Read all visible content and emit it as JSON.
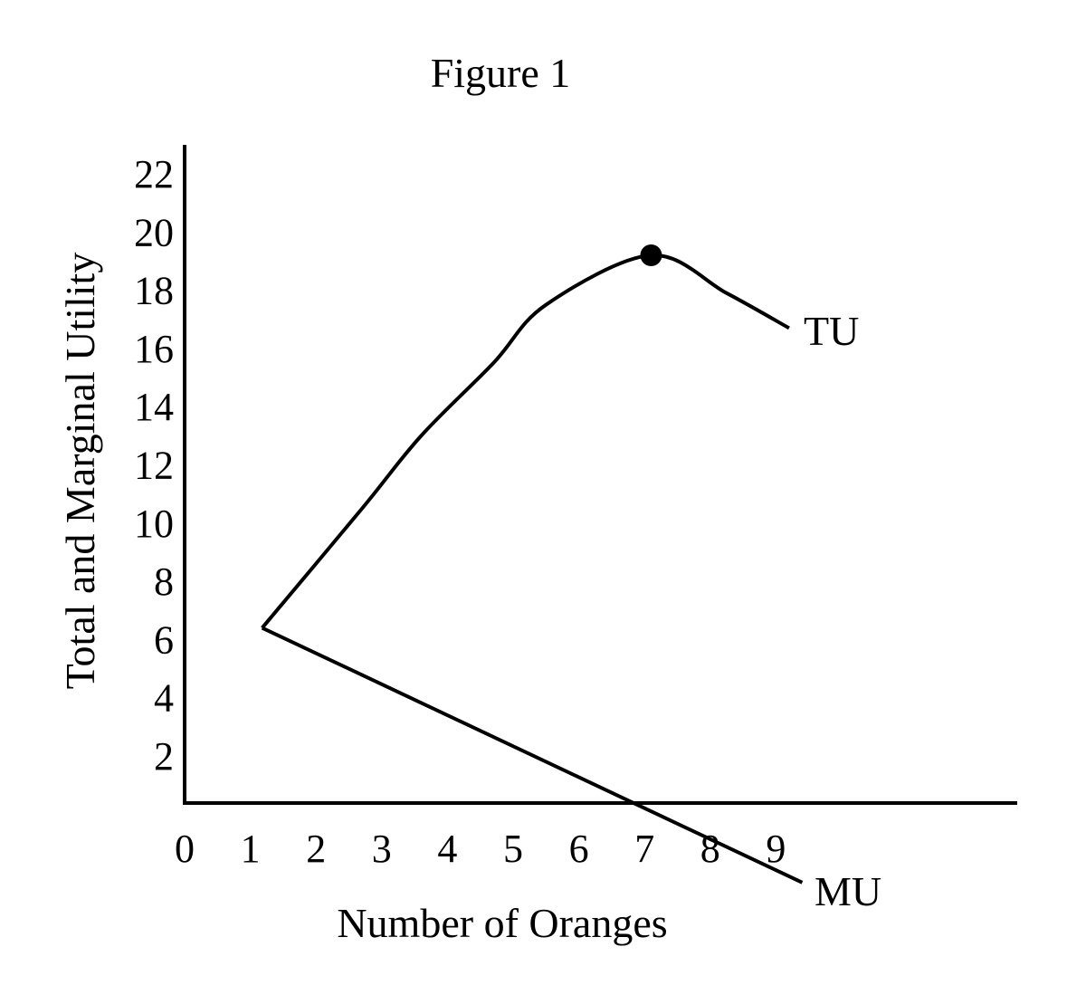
{
  "chart_data": {
    "type": "line",
    "title": "Figure 1",
    "xlabel": "Number of Oranges",
    "ylabel": "Total and Marginal Utility",
    "x_ticks": [
      "0",
      "1",
      "2",
      "3",
      "4",
      "5",
      "6",
      "7",
      "8",
      "9"
    ],
    "y_ticks": [
      "2",
      "4",
      "6",
      "8",
      "10",
      "12",
      "14",
      "16",
      "18",
      "20",
      "22"
    ],
    "xlim": [
      0,
      12.6
    ],
    "ylim": [
      0,
      23
    ],
    "grid": false,
    "series": [
      {
        "name": "TU",
        "points": [
          [
            1.18,
            6.4
          ],
          [
            2.7,
            10.5
          ],
          [
            3.6,
            13.0
          ],
          [
            4.7,
            15.5
          ],
          [
            5.5,
            17.5
          ],
          [
            7.1,
            19.2
          ],
          [
            8.25,
            17.9
          ],
          [
            9.2,
            16.7
          ]
        ],
        "marker": {
          "x": 7.1,
          "y": 19.2
        }
      },
      {
        "name": "MU",
        "points": [
          [
            1.18,
            6.4
          ],
          [
            9.4,
            -2.35
          ]
        ]
      }
    ],
    "color": "#000000"
  }
}
